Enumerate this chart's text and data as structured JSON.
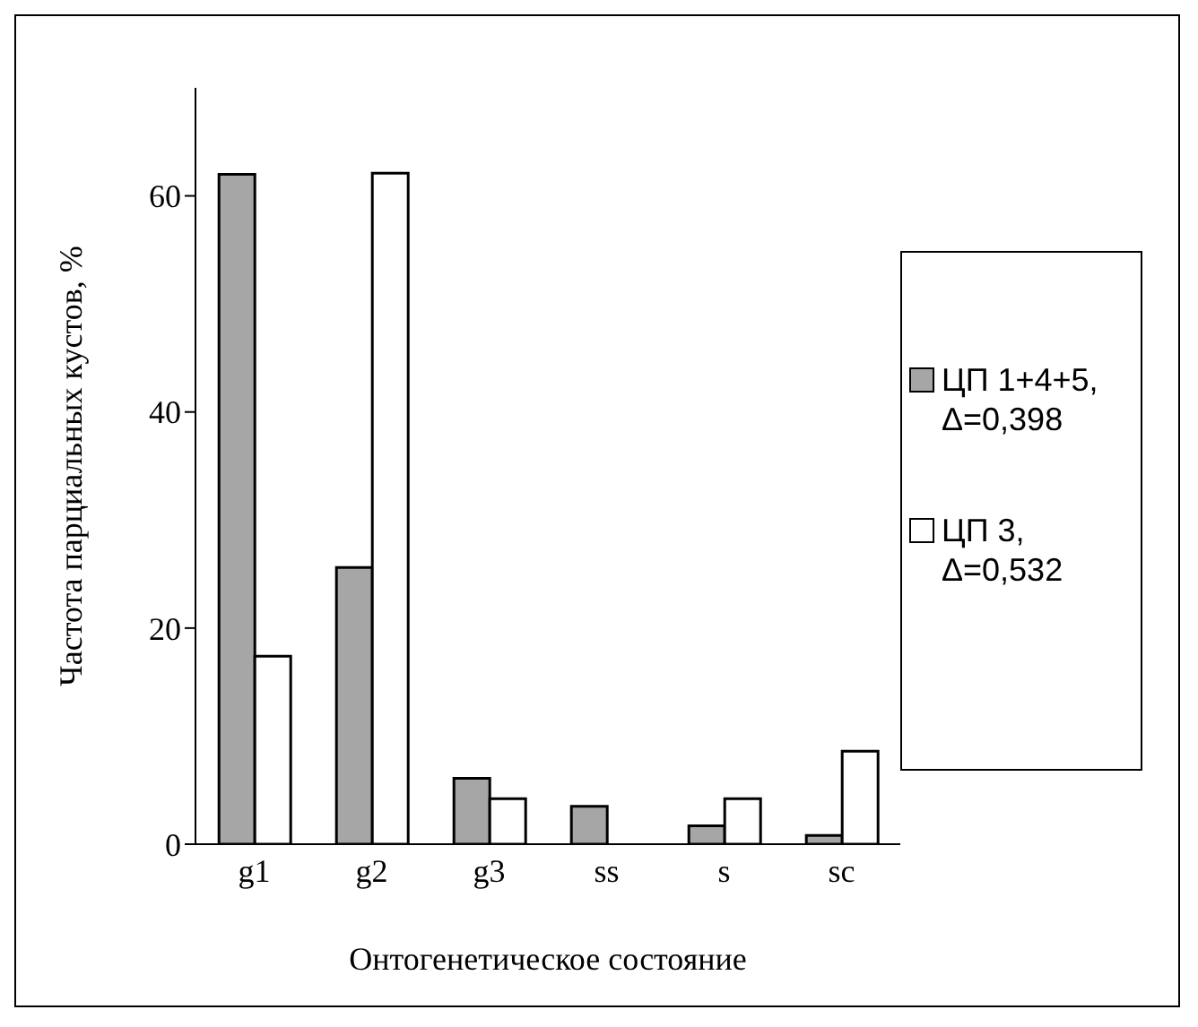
{
  "chart_data": {
    "type": "bar",
    "xlabel": "Онтогенетическое состояние",
    "ylabel": "Частота парциальных кустов, %",
    "categories": [
      "g1",
      "g2",
      "g3",
      "ss",
      "s",
      "sc"
    ],
    "series": [
      {
        "name": "ЦП 1+4+5, Δ=0,398",
        "color": "#a6a6a6",
        "values": [
          62,
          25.6,
          6.1,
          3.5,
          1.7,
          0.8
        ]
      },
      {
        "name": "ЦП 3, Δ=0,532",
        "color": "#ffffff",
        "values": [
          17.4,
          62.1,
          4.2,
          0,
          4.2,
          8.6
        ]
      }
    ],
    "ylim": [
      0,
      70
    ],
    "yticks": [
      0,
      20,
      40,
      60
    ],
    "legend": "right"
  }
}
